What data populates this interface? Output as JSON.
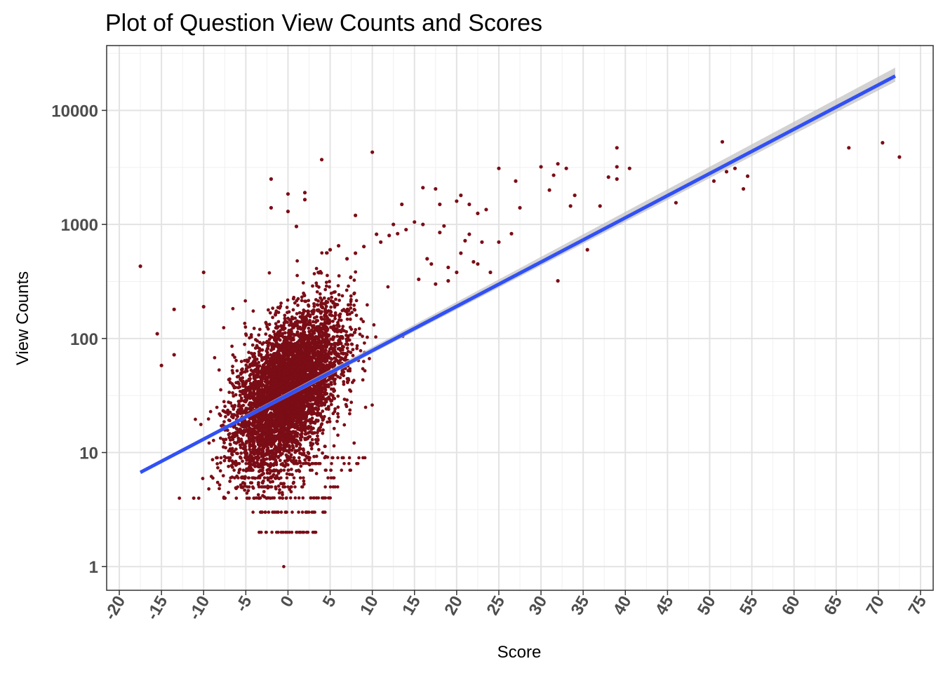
{
  "chart_data": {
    "type": "scatter",
    "title": "Plot of Question View Counts and Scores",
    "xlabel": "Score",
    "ylabel": "View Counts",
    "xlim": [
      -21.5,
      76.5
    ],
    "ylim": [
      0.62,
      37000
    ],
    "y_scale": "log",
    "x_ticks": [
      -20,
      -15,
      -10,
      -5,
      0,
      5,
      10,
      15,
      20,
      25,
      30,
      35,
      40,
      45,
      50,
      55,
      60,
      65,
      70,
      75
    ],
    "x_tick_labels": [
      "-20",
      "-15",
      "-10",
      "-5",
      "0",
      "5",
      "10",
      "15",
      "20",
      "25",
      "30",
      "35",
      "40",
      "45",
      "50",
      "55",
      "60",
      "65",
      "70",
      "75"
    ],
    "y_ticks": [
      1,
      10,
      100,
      1000,
      10000
    ],
    "y_tick_labels": [
      "1",
      "10",
      "100",
      "1000",
      "10000"
    ],
    "grid": true,
    "colors": {
      "points": "#7b0d16",
      "trend": "#3150f4",
      "band": "#bfbfbf",
      "panel_border": "#333333"
    },
    "series": [
      {
        "values_description_free": true,
        "points": [
          [
            -17.5,
            430
          ],
          [
            -15.5,
            110
          ],
          [
            -15,
            58
          ],
          [
            -13.5,
            180
          ],
          [
            -13.5,
            72
          ],
          [
            -10,
            380
          ],
          [
            -10,
            190
          ],
          [
            -2,
            2500
          ],
          [
            -2,
            1400
          ],
          [
            0,
            1300
          ],
          [
            1,
            960
          ],
          [
            0,
            1850
          ],
          [
            2,
            1650
          ],
          [
            2,
            1900
          ],
          [
            4,
            3700
          ],
          [
            10,
            4300
          ],
          [
            8,
            1200
          ],
          [
            12.5,
            1000
          ],
          [
            13.5,
            1500
          ],
          [
            16,
            2100
          ],
          [
            17.5,
            2050
          ],
          [
            20.5,
            1800
          ],
          [
            20,
            1600
          ],
          [
            18,
            1500
          ],
          [
            21.5,
            1500
          ],
          [
            23.5,
            1350
          ],
          [
            22.5,
            1250
          ],
          [
            25,
            3100
          ],
          [
            27,
            2400
          ],
          [
            27.5,
            1400
          ],
          [
            30,
            3200
          ],
          [
            31.5,
            2700
          ],
          [
            32,
            3400
          ],
          [
            33,
            3100
          ],
          [
            31,
            2000
          ],
          [
            33.5,
            1450
          ],
          [
            34,
            1800
          ],
          [
            35.5,
            600
          ],
          [
            32,
            320
          ],
          [
            37,
            1450
          ],
          [
            38,
            2600
          ],
          [
            39,
            3200
          ],
          [
            39,
            2500
          ],
          [
            39,
            4700
          ],
          [
            40.5,
            3100
          ],
          [
            46,
            1550
          ],
          [
            50.5,
            2400
          ],
          [
            51.5,
            5300
          ],
          [
            52,
            2900
          ],
          [
            53,
            3100
          ],
          [
            54,
            2050
          ],
          [
            54.5,
            2650
          ],
          [
            66.5,
            4700
          ],
          [
            70.5,
            5200
          ],
          [
            72.5,
            3900
          ],
          [
            26.5,
            830
          ],
          [
            25,
            700
          ],
          [
            24,
            380
          ],
          [
            22,
            470
          ],
          [
            22.5,
            450
          ],
          [
            21.5,
            820
          ],
          [
            21,
            720
          ],
          [
            23,
            700
          ],
          [
            20.5,
            560
          ],
          [
            20,
            380
          ],
          [
            19,
            420
          ],
          [
            19,
            320
          ],
          [
            17.5,
            300
          ],
          [
            17,
            450
          ],
          [
            16.5,
            500
          ],
          [
            15.5,
            330
          ],
          [
            18.5,
            970
          ],
          [
            18,
            850
          ],
          [
            16,
            1000
          ],
          [
            15,
            1050
          ],
          [
            14,
            900
          ],
          [
            13,
            830
          ],
          [
            12,
            800
          ],
          [
            11,
            700
          ],
          [
            10.5,
            820
          ],
          [
            9,
            640
          ],
          [
            8,
            560
          ],
          [
            7,
            500
          ],
          [
            6,
            650
          ],
          [
            5,
            600
          ]
        ],
        "trend": {
          "x_start": -17.5,
          "y_start": 6.7,
          "x_end": 72,
          "y_end": 20000
        }
      }
    ]
  }
}
